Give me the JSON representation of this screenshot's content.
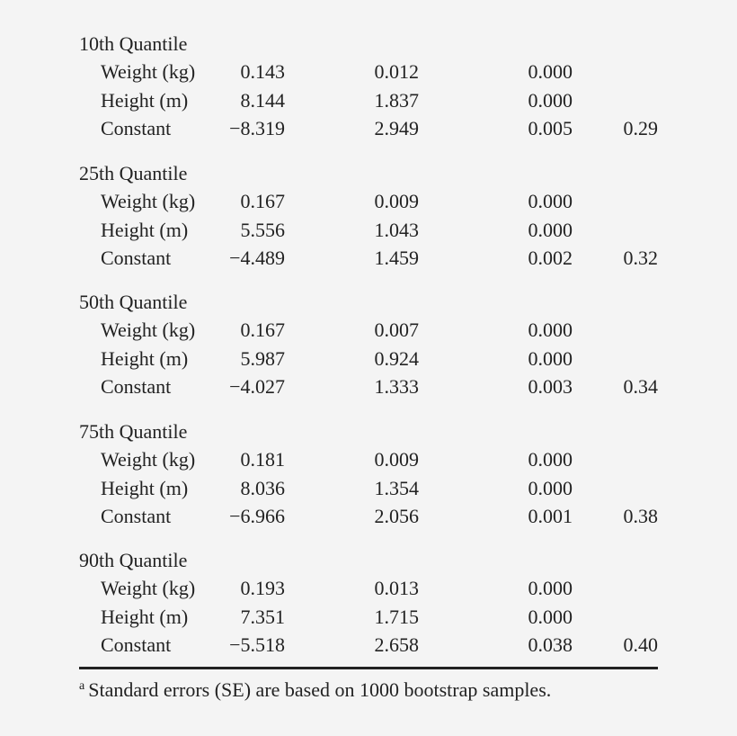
{
  "groups": [
    {
      "title": "10th Quantile",
      "rows": [
        {
          "label": "Weight (kg)",
          "estimate": "0.143",
          "se": "0.012",
          "p": "0.000",
          "r2": ""
        },
        {
          "label": "Height (m)",
          "estimate": "8.144",
          "se": "1.837",
          "p": "0.000",
          "r2": ""
        },
        {
          "label": "Constant",
          "estimate": "−8.319",
          "se": "2.949",
          "p": "0.005",
          "r2": "0.29"
        }
      ]
    },
    {
      "title": "25th Quantile",
      "rows": [
        {
          "label": "Weight (kg)",
          "estimate": "0.167",
          "se": "0.009",
          "p": "0.000",
          "r2": ""
        },
        {
          "label": "Height (m)",
          "estimate": "5.556",
          "se": "1.043",
          "p": "0.000",
          "r2": ""
        },
        {
          "label": "Constant",
          "estimate": "−4.489",
          "se": "1.459",
          "p": "0.002",
          "r2": "0.32"
        }
      ]
    },
    {
      "title": "50th Quantile",
      "rows": [
        {
          "label": "Weight (kg)",
          "estimate": "0.167",
          "se": "0.007",
          "p": "0.000",
          "r2": ""
        },
        {
          "label": "Height (m)",
          "estimate": "5.987",
          "se": "0.924",
          "p": "0.000",
          "r2": ""
        },
        {
          "label": "Constant",
          "estimate": "−4.027",
          "se": "1.333",
          "p": "0.003",
          "r2": "0.34"
        }
      ]
    },
    {
      "title": "75th Quantile",
      "rows": [
        {
          "label": "Weight (kg)",
          "estimate": "0.181",
          "se": "0.009",
          "p": "0.000",
          "r2": ""
        },
        {
          "label": "Height (m)",
          "estimate": "8.036",
          "se": "1.354",
          "p": "0.000",
          "r2": ""
        },
        {
          "label": "Constant",
          "estimate": "−6.966",
          "se": "2.056",
          "p": "0.001",
          "r2": "0.38"
        }
      ]
    },
    {
      "title": "90th Quantile",
      "rows": [
        {
          "label": "Weight (kg)",
          "estimate": "0.193",
          "se": "0.013",
          "p": "0.000",
          "r2": ""
        },
        {
          "label": "Height (m)",
          "estimate": "7.351",
          "se": "1.715",
          "p": "0.000",
          "r2": ""
        },
        {
          "label": "Constant",
          "estimate": "−5.518",
          "se": "2.658",
          "p": "0.038",
          "r2": "0.40"
        }
      ]
    }
  ],
  "footnote": {
    "marker": "a",
    "text": "Standard errors (SE) are based on 1000 bootstrap samples."
  }
}
